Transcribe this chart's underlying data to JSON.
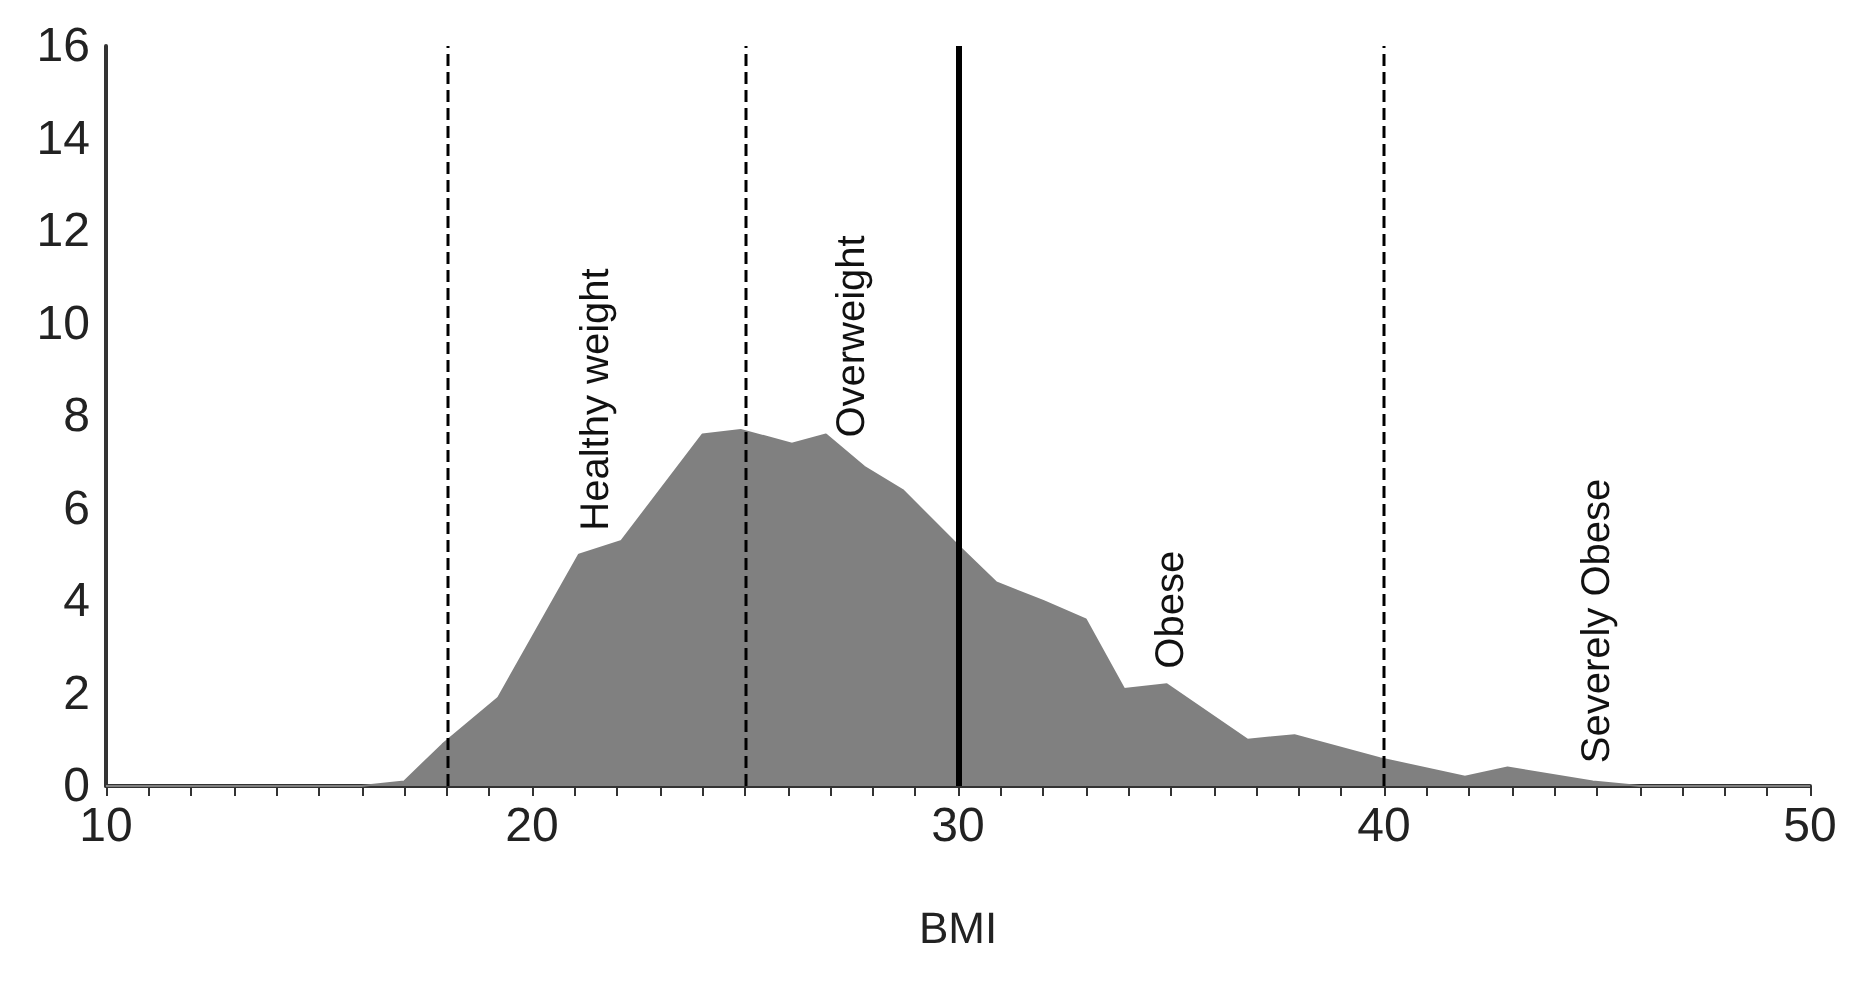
{
  "chart_data": {
    "type": "area",
    "xlabel": "BMI",
    "x": [
      10,
      16,
      17,
      17.9,
      19.2,
      21.1,
      22.1,
      24,
      24.9,
      26.1,
      26.9,
      27.8,
      28.7,
      30,
      30.9,
      32,
      33,
      33.9,
      34.9,
      36.8,
      37.9,
      39.9,
      41.9,
      42.9,
      44.9,
      46,
      50
    ],
    "series": [
      {
        "color": "#808080",
        "values": [
          0,
          0,
          0.1,
          0.9,
          1.9,
          5.0,
          5.3,
          7.6,
          7.7,
          7.4,
          7.6,
          6.9,
          6.4,
          5.2,
          4.4,
          4.0,
          3.6,
          2.1,
          2.2,
          1.0,
          1.1,
          0.6,
          0.2,
          0.4,
          0.1,
          0,
          0
        ]
      }
    ],
    "xlim": [
      10,
      50
    ],
    "xticks": [
      10,
      {
        "value": 11,
        "label": null
      },
      {
        "value": 12,
        "label": null
      },
      {
        "value": 13,
        "label": null
      },
      {
        "value": 14,
        "label": null
      },
      {
        "value": 15,
        "label": null
      },
      {
        "value": 16,
        "label": null
      },
      {
        "value": 17,
        "label": null
      },
      {
        "value": 18,
        "label": null
      },
      {
        "value": 19,
        "label": null
      },
      20,
      {
        "value": 21,
        "label": null
      },
      {
        "value": 22,
        "label": null
      },
      {
        "value": 23,
        "label": null
      },
      {
        "value": 24,
        "label": null
      },
      {
        "value": 25,
        "label": null
      },
      {
        "value": 26,
        "label": null
      },
      {
        "value": 27,
        "label": null
      },
      {
        "value": 28,
        "label": null
      },
      {
        "value": 29,
        "label": null
      },
      30,
      {
        "value": 31,
        "label": null
      },
      {
        "value": 32,
        "label": null
      },
      {
        "value": 33,
        "label": null
      },
      {
        "value": 34,
        "label": null
      },
      {
        "value": 35,
        "label": null
      },
      {
        "value": 36,
        "label": null
      },
      {
        "value": 37,
        "label": null
      },
      {
        "value": 38,
        "label": null
      },
      {
        "value": 39,
        "label": null
      },
      40,
      {
        "value": 41,
        "label": null
      },
      {
        "value": 42,
        "label": null
      },
      {
        "value": 43,
        "label": null
      },
      {
        "value": 44,
        "label": null
      },
      {
        "value": 45,
        "label": null
      },
      {
        "value": 46,
        "label": null
      },
      {
        "value": 47,
        "label": null
      },
      {
        "value": 48,
        "label": null
      },
      {
        "value": 49,
        "label": null
      },
      50
    ],
    "ylim": [
      0,
      16
    ],
    "yticks": [
      0,
      2,
      4,
      6,
      8,
      10,
      12,
      14,
      16
    ],
    "grid": false,
    "ref_lines": [
      {
        "axis": "x",
        "value": 18,
        "color": "#000000",
        "line_style": "dashed"
      },
      {
        "axis": "x",
        "value": 25,
        "color": "#000000",
        "line_style": "dashed"
      },
      {
        "axis": "x",
        "value": 30,
        "color": "#000000",
        "line_style": "solid"
      },
      {
        "axis": "x",
        "value": 40,
        "color": "#000000",
        "line_style": "dashed"
      }
    ],
    "annotations": [
      "Healthy weight",
      "Overweight",
      "Obese",
      "Severely Obese"
    ]
  }
}
